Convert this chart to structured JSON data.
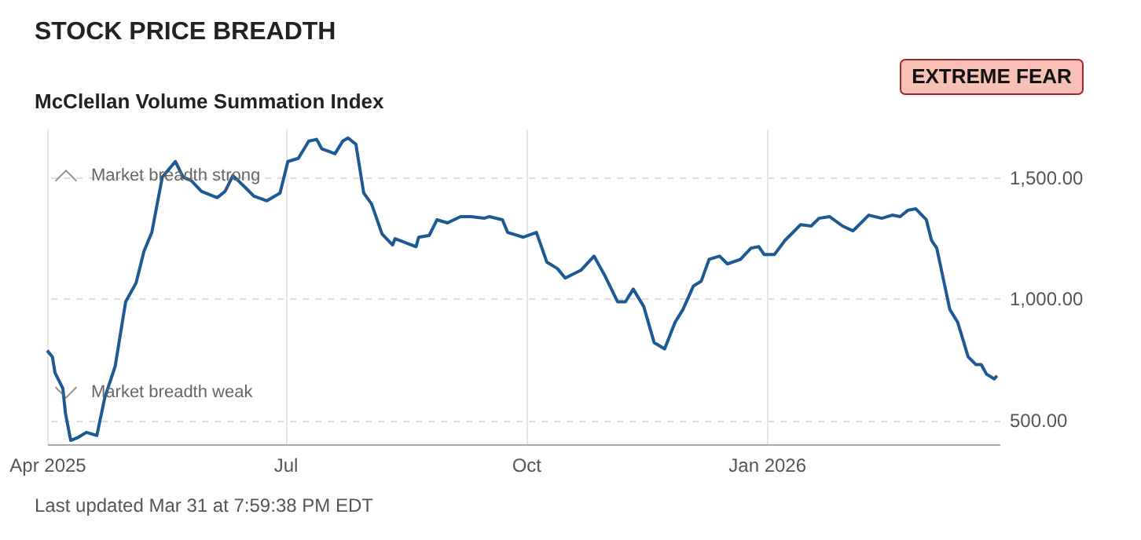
{
  "chart_data": {
    "type": "line",
    "title": "STOCK PRICE BREADTH",
    "subtitle": "McClellan Volume Summation Index",
    "annotations": [
      "Market breadth strong",
      "Market breadth weak",
      "EXTREME FEAR",
      "Last updated Mar 31 at 7:59:38 PM EDT"
    ],
    "x": [
      "2025-04-01",
      "2025-04-03",
      "2025-04-04",
      "2025-04-07",
      "2025-04-08",
      "2025-04-10",
      "2025-04-13",
      "2025-04-16",
      "2025-04-20",
      "2025-04-23",
      "2025-04-27",
      "2025-05-01",
      "2025-05-05",
      "2025-05-08",
      "2025-05-11",
      "2025-05-15",
      "2025-05-20",
      "2025-05-23",
      "2025-05-26",
      "2025-05-30",
      "2025-06-05",
      "2025-06-08",
      "2025-06-11",
      "2025-06-16",
      "2025-06-19",
      "2025-06-24",
      "2025-06-29",
      "2025-07-02",
      "2025-07-06",
      "2025-07-10",
      "2025-07-13",
      "2025-07-15",
      "2025-07-20",
      "2025-07-23",
      "2025-07-25",
      "2025-07-28",
      "2025-07-31",
      "2025-08-03",
      "2025-08-07",
      "2025-08-11",
      "2025-08-12",
      "2025-08-20",
      "2025-08-21",
      "2025-08-25",
      "2025-08-28",
      "2025-09-01",
      "2025-09-06",
      "2025-09-10",
      "2025-09-15",
      "2025-09-17",
      "2025-09-22",
      "2025-09-24",
      "2025-09-30",
      "2025-10-05",
      "2025-10-09",
      "2025-10-13",
      "2025-10-16",
      "2025-10-22",
      "2025-10-27",
      "2025-10-31",
      "2025-11-05",
      "2025-11-08",
      "2025-11-11",
      "2025-11-15",
      "2025-11-19",
      "2025-11-23",
      "2025-11-27",
      "2025-11-30",
      "2025-12-04",
      "2025-12-07",
      "2025-12-10",
      "2025-12-14",
      "2025-12-17",
      "2025-12-22",
      "2025-12-26",
      "2025-12-29",
      "2025-12-31",
      "2026-01-04",
      "2026-01-08",
      "2026-01-14",
      "2026-01-18",
      "2026-01-21",
      "2026-01-25",
      "2026-01-30",
      "2026-02-03",
      "2026-02-09",
      "2026-02-14",
      "2026-02-18",
      "2026-02-21",
      "2026-02-24",
      "2026-02-27",
      "2026-03-03",
      "2026-03-05",
      "2026-03-07",
      "2026-03-12",
      "2026-03-15",
      "2026-03-19",
      "2026-03-22",
      "2026-03-24",
      "2026-03-26",
      "2026-03-29",
      "2026-03-30"
    ],
    "series": [
      {
        "color": "#1d5a94",
        "values": [
          786,
          760,
          695,
          630,
          527,
          416,
          429,
          449,
          436,
          591,
          721,
          987,
          1065,
          1195,
          1273,
          1500,
          1565,
          1500,
          1487,
          1442,
          1416,
          1442,
          1507,
          1455,
          1422,
          1403,
          1435,
          1565,
          1578,
          1649,
          1656,
          1617,
          1597,
          1649,
          1662,
          1636,
          1435,
          1390,
          1266,
          1221,
          1247,
          1214,
          1253,
          1260,
          1325,
          1312,
          1338,
          1338,
          1331,
          1338,
          1325,
          1273,
          1253,
          1273,
          1150,
          1124,
          1085,
          1117,
          1175,
          1098,
          987,
          987,
          1039,
          968,
          819,
          793,
          903,
          955,
          1052,
          1072,
          1162,
          1175,
          1143,
          1162,
          1208,
          1214,
          1182,
          1182,
          1240,
          1305,
          1299,
          1331,
          1338,
          1299,
          1279,
          1344,
          1331,
          1344,
          1338,
          1364,
          1370,
          1325,
          1240,
          1208,
          955,
          903,
          760,
          728,
          728,
          689,
          669,
          682
        ]
      }
    ],
    "xlim": [
      "2025-04-01",
      "2026-03-31"
    ],
    "xticks": [
      {
        "value": "2025-04-01",
        "label": "Apr 2025"
      },
      {
        "value": "2025-07-01",
        "label": "Jul"
      },
      {
        "value": "2025-10-01",
        "label": "Oct"
      },
      {
        "value": "2026-01-01",
        "label": "Jan 2026"
      }
    ],
    "ylim": [
      400,
      1700
    ],
    "yticks": [
      {
        "value": 500,
        "label": "500.00"
      },
      {
        "value": 1000,
        "label": "1,000.00"
      },
      {
        "value": 1500,
        "label": "1,500.00"
      }
    ],
    "grid": true,
    "marker": "none",
    "line_style": "solid"
  }
}
